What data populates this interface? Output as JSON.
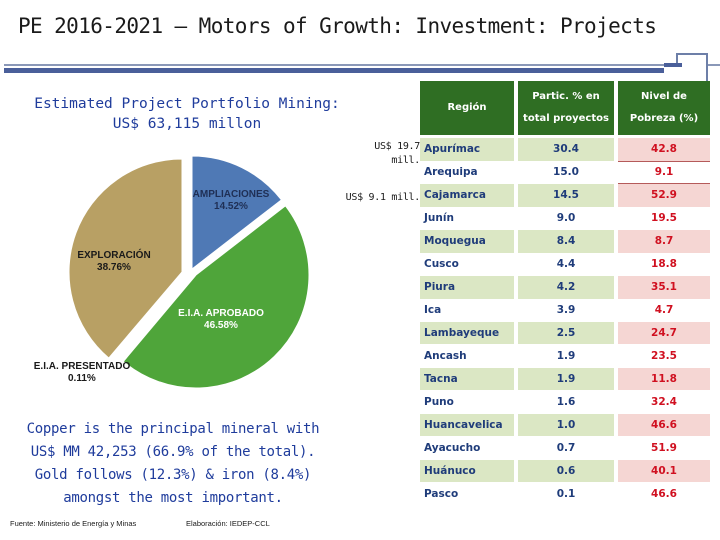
{
  "title": "PE 2016-2021 – Motors of Growth: Investment: Projects",
  "subtitle_line1": "Estimated Project Portfolio Mining:",
  "subtitle_line2": "US$ 63,115 millon",
  "notes": {
    "note1_line1": "US$ 19.7",
    "note1_line2": "mill.",
    "note2": "US$ 9.1 mill."
  },
  "copper_text": {
    "line1": "Copper is the principal mineral with",
    "line2": "US$ MM 42,253 (66.9% of the total).",
    "line3": "Gold follows (12.3%) & iron (8.4%)",
    "line4": "amongst the most important."
  },
  "source": "Fuente: Ministerio de Energía y Minas",
  "elaboration": "Elaboración: IEDEP-CCL",
  "colors": {
    "ampliaciones": "#4f79b5",
    "eia_aprobado": "#4fa53a",
    "exploracion": "#b8a064",
    "eia_presentado": "#6a3e8c",
    "header_green": "#2f6e23"
  },
  "chart_data": {
    "type": "pie",
    "title": "Estimated Project Portfolio Mining: US$ 63,115 millon",
    "slices": [
      {
        "label": "AMPLIACIONES",
        "pct_text": "14.52%",
        "value": 14.52
      },
      {
        "label": "E.I.A. APROBADO",
        "pct_text": "46.58%",
        "value": 46.58
      },
      {
        "label": "E.I.A. PRESENTADO",
        "pct_text": "0.11%",
        "value": 0.11
      },
      {
        "label": "EXPLORACIÓN",
        "pct_text": "38.76%",
        "value": 38.76
      }
    ]
  },
  "table": {
    "headers": {
      "region": "Región",
      "partic_line1": "Partic. % en",
      "partic_line2": "total proyectos",
      "pobreza_line1": "Nivel de",
      "pobreza_line2": "Pobreza (%)"
    },
    "rows": [
      {
        "region": "Apurímac",
        "partic": "30.4",
        "pobreza": "42.8"
      },
      {
        "region": "Arequipa",
        "partic": "15.0",
        "pobreza": "9.1"
      },
      {
        "region": "Cajamarca",
        "partic": "14.5",
        "pobreza": "52.9"
      },
      {
        "region": "Junín",
        "partic": "9.0",
        "pobreza": "19.5"
      },
      {
        "region": "Moquegua",
        "partic": "8.4",
        "pobreza": "8.7"
      },
      {
        "region": "Cusco",
        "partic": "4.4",
        "pobreza": "18.8"
      },
      {
        "region": "Piura",
        "partic": "4.2",
        "pobreza": "35.1"
      },
      {
        "region": "Ica",
        "partic": "3.9",
        "pobreza": "4.7"
      },
      {
        "region": "Lambayeque",
        "partic": "2.5",
        "pobreza": "24.7"
      },
      {
        "region": "Ancash",
        "partic": "1.9",
        "pobreza": "23.5"
      },
      {
        "region": "Tacna",
        "partic": "1.9",
        "pobreza": "11.8"
      },
      {
        "region": "Puno",
        "partic": "1.6",
        "pobreza": "32.4"
      },
      {
        "region": "Huancavelica",
        "partic": "1.0",
        "pobreza": "46.6"
      },
      {
        "region": "Ayacucho",
        "partic": "0.7",
        "pobreza": "51.9"
      },
      {
        "region": "Huánuco",
        "partic": "0.6",
        "pobreza": "40.1"
      },
      {
        "region": "Pasco",
        "partic": "0.1",
        "pobreza": "46.6"
      }
    ]
  }
}
